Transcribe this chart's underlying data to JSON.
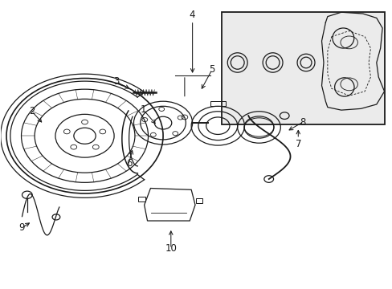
{
  "bg_color": "#ffffff",
  "line_color": "#1a1a1a",
  "inset_bg": "#ebebeb",
  "lw": 0.9,
  "figsize": [
    4.89,
    3.6
  ],
  "dpi": 100,
  "labels": {
    "1": [
      0.365,
      0.595,
      0.39,
      0.54
    ],
    "2": [
      0.085,
      0.61,
      0.115,
      0.57
    ],
    "3": [
      0.3,
      0.72,
      0.33,
      0.69
    ],
    "4": [
      0.42,
      0.94,
      0.42,
      0.87
    ],
    "5": [
      0.53,
      0.76,
      0.51,
      0.7
    ],
    "6": [
      0.33,
      0.43,
      0.335,
      0.49
    ],
    "7": [
      0.72,
      0.52,
      0.72,
      0.44
    ],
    "8": [
      0.77,
      0.57,
      0.72,
      0.54
    ],
    "9": [
      0.06,
      0.21,
      0.085,
      0.225
    ],
    "10": [
      0.435,
      0.14,
      0.435,
      0.2
    ]
  }
}
